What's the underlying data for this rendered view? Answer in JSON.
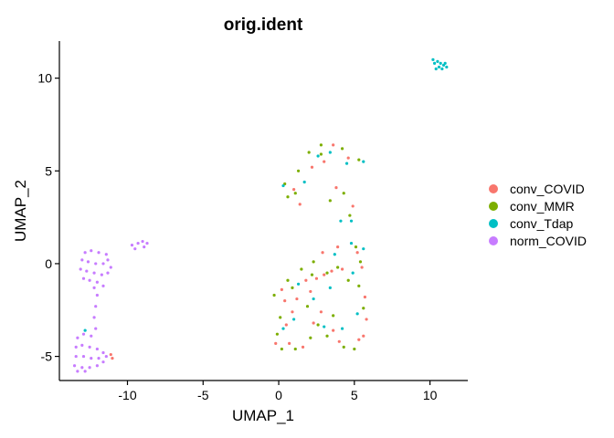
{
  "chart_data": {
    "type": "scatter",
    "title": "orig.ident",
    "xlabel": "UMAP_1",
    "ylabel": "UMAP_2",
    "xlim": [
      -14.5,
      12.5
    ],
    "ylim": [
      -6.3,
      12
    ],
    "xticks": [
      -10,
      -5,
      0,
      5,
      10
    ],
    "yticks": [
      -5,
      0,
      5,
      10
    ],
    "grid": false,
    "legend_position": "right",
    "colors": {
      "conv_COVID": "#F8766D",
      "conv_MMR": "#7CAE00",
      "conv_Tdap": "#00BFC4",
      "norm_COVID": "#C77CFF"
    },
    "series": [
      {
        "name": "conv_COVID",
        "points": [
          [
            1.0,
            4.0
          ],
          [
            3.0,
            5.5
          ],
          [
            3.6,
            6.4
          ],
          [
            4.6,
            5.7
          ],
          [
            2.2,
            5.2
          ],
          [
            1.4,
            3.2
          ],
          [
            3.8,
            4.1
          ],
          [
            4.9,
            3.1
          ],
          [
            2.5,
            -0.8
          ],
          [
            3.0,
            -0.6
          ],
          [
            3.5,
            -0.4
          ],
          [
            4.2,
            -0.3
          ],
          [
            1.8,
            -0.9
          ],
          [
            2.1,
            -1.5
          ],
          [
            5.2,
            0.6
          ],
          [
            5.5,
            -0.2
          ],
          [
            5.7,
            -1.8
          ],
          [
            5.8,
            -3.0
          ],
          [
            5.6,
            -3.9
          ],
          [
            5.3,
            -4.1
          ],
          [
            3.6,
            -3.6
          ],
          [
            4.0,
            -4.2
          ],
          [
            2.8,
            -2.6
          ],
          [
            2.3,
            -3.2
          ],
          [
            1.2,
            -1.9
          ],
          [
            0.9,
            -2.6
          ],
          [
            0.5,
            -3.3
          ],
          [
            0.2,
            -1.4
          ],
          [
            1.6,
            -4.5
          ],
          [
            0.7,
            -4.3
          ],
          [
            -0.2,
            -4.3
          ],
          [
            0.4,
            -2.0
          ],
          [
            2.9,
            0.6
          ],
          [
            3.9,
            0.9
          ],
          [
            -11.0,
            -5.1
          ],
          [
            -11.1,
            -4.9
          ]
        ]
      },
      {
        "name": "conv_MMR",
        "points": [
          [
            2.0,
            6.0
          ],
          [
            2.8,
            6.4
          ],
          [
            4.2,
            6.2
          ],
          [
            5.3,
            5.6
          ],
          [
            1.3,
            5.0
          ],
          [
            0.4,
            4.3
          ],
          [
            0.6,
            3.6
          ],
          [
            1.1,
            3.8
          ],
          [
            4.3,
            3.8
          ],
          [
            3.4,
            3.4
          ],
          [
            4.7,
            2.6
          ],
          [
            2.8,
            5.9
          ],
          [
            5.1,
            0.9
          ],
          [
            5.4,
            0.1
          ],
          [
            4.6,
            -0.9
          ],
          [
            3.2,
            -0.5
          ],
          [
            1.5,
            -0.3
          ],
          [
            0.6,
            -0.9
          ],
          [
            -0.3,
            -1.7
          ],
          [
            0.1,
            -2.9
          ],
          [
            -0.1,
            -3.8
          ],
          [
            0.2,
            -4.6
          ],
          [
            1.1,
            -4.6
          ],
          [
            2.1,
            -4.0
          ],
          [
            3.2,
            -3.9
          ],
          [
            4.3,
            -4.5
          ],
          [
            5.0,
            -4.6
          ],
          [
            5.6,
            -2.4
          ],
          [
            5.3,
            -1.2
          ],
          [
            3.6,
            -2.8
          ],
          [
            2.6,
            -3.3
          ],
          [
            1.9,
            -2.3
          ],
          [
            0.9,
            -1.3
          ],
          [
            2.2,
            -0.6
          ],
          [
            3.9,
            -0.2
          ],
          [
            2.3,
            0.1
          ]
        ]
      },
      {
        "name": "conv_Tdap",
        "points": [
          [
            10.3,
            10.8
          ],
          [
            10.5,
            10.9
          ],
          [
            10.6,
            10.6
          ],
          [
            10.9,
            10.7
          ],
          [
            11.1,
            10.6
          ],
          [
            10.4,
            10.5
          ],
          [
            10.7,
            10.8
          ],
          [
            10.2,
            11.0
          ],
          [
            10.8,
            10.5
          ],
          [
            11.0,
            10.8
          ],
          [
            0.3,
            4.2
          ],
          [
            1.7,
            4.4
          ],
          [
            2.6,
            5.8
          ],
          [
            3.4,
            6.0
          ],
          [
            4.5,
            5.4
          ],
          [
            5.6,
            5.5
          ],
          [
            4.1,
            2.3
          ],
          [
            4.8,
            2.3
          ],
          [
            3.7,
            0.5
          ],
          [
            4.8,
            1.1
          ],
          [
            5.6,
            0.8
          ],
          [
            4.9,
            -0.5
          ],
          [
            3.0,
            -3.4
          ],
          [
            1.0,
            -3.0
          ],
          [
            0.3,
            -3.5
          ],
          [
            4.2,
            -3.5
          ],
          [
            5.2,
            -2.7
          ],
          [
            2.3,
            -1.9
          ],
          [
            1.3,
            -1.1
          ],
          [
            3.4,
            -1.3
          ],
          [
            -12.8,
            -3.6
          ]
        ]
      },
      {
        "name": "norm_COVID",
        "points": [
          [
            -12.8,
            0.6
          ],
          [
            -12.4,
            0.7
          ],
          [
            -11.9,
            0.6
          ],
          [
            -11.4,
            0.5
          ],
          [
            -13.0,
            0.2
          ],
          [
            -12.6,
            0.1
          ],
          [
            -12.1,
            0.0
          ],
          [
            -11.6,
            0.0
          ],
          [
            -11.3,
            0.2
          ],
          [
            -13.1,
            -0.3
          ],
          [
            -12.7,
            -0.4
          ],
          [
            -12.2,
            -0.5
          ],
          [
            -11.7,
            -0.6
          ],
          [
            -11.3,
            -0.5
          ],
          [
            -12.5,
            -0.9
          ],
          [
            -12.0,
            -1.0
          ],
          [
            -11.6,
            -1.2
          ],
          [
            -12.2,
            -1.3
          ],
          [
            -12.9,
            -0.8
          ],
          [
            -11.1,
            -0.2
          ],
          [
            -9.7,
            1.0
          ],
          [
            -9.3,
            1.1
          ],
          [
            -9.0,
            1.2
          ],
          [
            -8.7,
            1.1
          ],
          [
            -9.5,
            0.8
          ],
          [
            -8.9,
            0.9
          ],
          [
            -12.0,
            -1.7
          ],
          [
            -12.1,
            -2.3
          ],
          [
            -12.2,
            -2.9
          ],
          [
            -12.1,
            -3.5
          ],
          [
            -13.3,
            -4.0
          ],
          [
            -12.9,
            -3.8
          ],
          [
            -12.4,
            -3.9
          ],
          [
            -13.4,
            -4.5
          ],
          [
            -13.0,
            -4.4
          ],
          [
            -12.5,
            -4.5
          ],
          [
            -12.0,
            -4.6
          ],
          [
            -11.6,
            -4.8
          ],
          [
            -13.4,
            -5.0
          ],
          [
            -12.9,
            -5.0
          ],
          [
            -12.4,
            -5.1
          ],
          [
            -11.9,
            -5.1
          ],
          [
            -11.4,
            -5.0
          ],
          [
            -13.5,
            -5.5
          ],
          [
            -13.0,
            -5.6
          ],
          [
            -12.5,
            -5.6
          ],
          [
            -12.0,
            -5.5
          ],
          [
            -11.6,
            -5.3
          ],
          [
            -13.3,
            -5.8
          ],
          [
            -12.8,
            -5.8
          ]
        ]
      }
    ]
  }
}
